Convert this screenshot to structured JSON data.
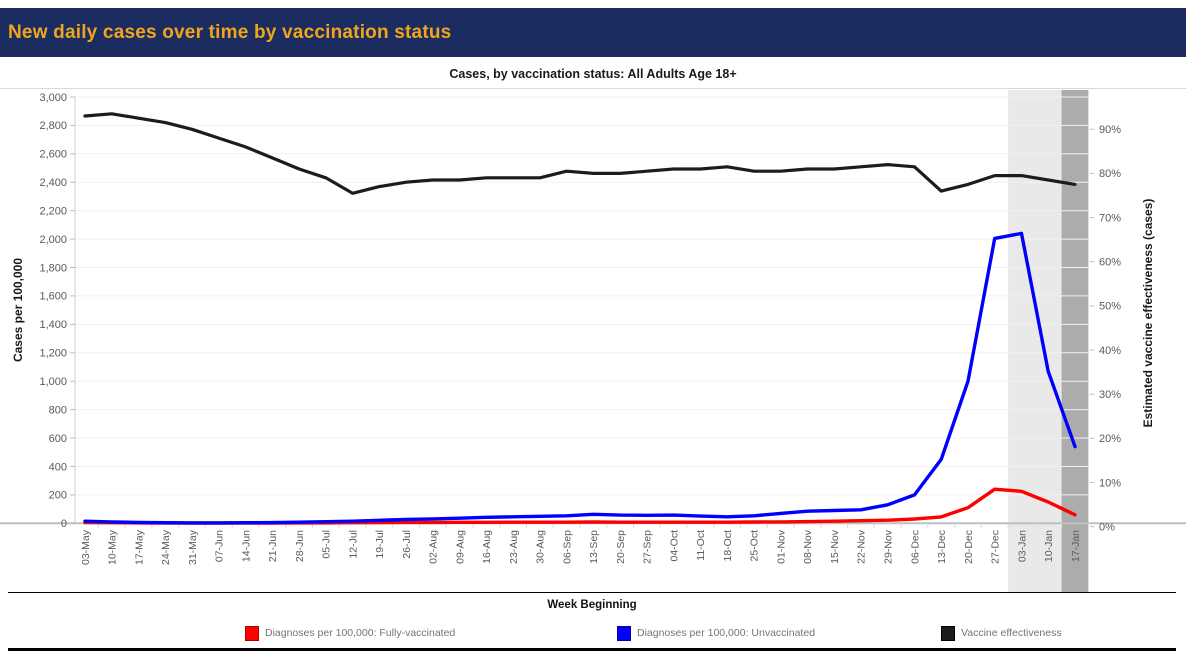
{
  "header": {
    "title": "New daily cases over time by vaccination status"
  },
  "chart": {
    "title": "Cases, by vaccination status: All Adults Age 18+",
    "x_axis_title": "Week Beginning",
    "y_left_title": "Cases per 100,000",
    "y_right_title": "Estimated vaccine effectiveness (cases)"
  },
  "legend": {
    "items": [
      {
        "id": "fully-vaccinated",
        "label": "Diagnoses per 100,000: Fully-vaccinated",
        "color": "#FE0000"
      },
      {
        "id": "unvaccinated",
        "label": "Diagnoses per 100,000: Unvaccinated",
        "color": "#0100FE"
      },
      {
        "id": "vaccine-effectiveness",
        "label": "Vaccine effectiveness",
        "color": "#1C1C1C"
      }
    ]
  },
  "colors": {
    "header_background": "#1A2C60",
    "header_text": "#F2A51B",
    "band_light": "#E9E9E9",
    "band_dark": "#ACACAC",
    "axis_line": "#BFBFBF",
    "tick_text": "#5A5A5A"
  },
  "chart_data": {
    "type": "line",
    "title": "Cases, by vaccination status: All Adults Age 18+",
    "categories": [
      "03-May",
      "10-May",
      "17-May",
      "24-May",
      "31-May",
      "07-Jun",
      "14-Jun",
      "21-Jun",
      "28-Jun",
      "05-Jul",
      "12-Jul",
      "19-Jul",
      "26-Jul",
      "02-Aug",
      "09-Aug",
      "16-Aug",
      "23-Aug",
      "30-Aug",
      "06-Sep",
      "13-Sep",
      "20-Sep",
      "27-Sep",
      "04-Oct",
      "11-Oct",
      "18-Oct",
      "25-Oct",
      "01-Nov",
      "08-Nov",
      "15-Nov",
      "22-Nov",
      "29-Nov",
      "06-Dec",
      "13-Dec",
      "20-Dec",
      "27-Dec",
      "03-Jan",
      "10-Jan",
      "17-Jan"
    ],
    "xlabel": "Week Beginning",
    "y_left": {
      "label": "Cases per 100,000",
      "min": 0,
      "max": 3000,
      "step": 200
    },
    "y_right": {
      "label": "Estimated vaccine effectiveness (cases)",
      "min": 0,
      "max": 90,
      "step": 10,
      "unit": "%"
    },
    "grid": "faint-horizontal",
    "legend_position": "bottom",
    "series": [
      {
        "id": "fully-vaccinated",
        "name": "Diagnoses per 100,000: Fully-vaccinated",
        "axis": "left",
        "color": "#FE0000",
        "values": [
          5,
          4,
          3,
          2,
          2,
          2,
          2,
          2,
          3,
          3,
          4,
          5,
          6,
          6,
          7,
          7,
          8,
          8,
          8,
          9,
          8,
          8,
          8,
          8,
          8,
          9,
          10,
          12,
          15,
          18,
          22,
          30,
          45,
          110,
          240,
          225,
          150,
          60
        ]
      },
      {
        "id": "unvaccinated",
        "name": "Diagnoses per 100,000: Unvaccinated",
        "axis": "left",
        "color": "#0100FE",
        "values": [
          15,
          10,
          6,
          4,
          3,
          3,
          4,
          5,
          8,
          11,
          15,
          21,
          27,
          31,
          36,
          42,
          46,
          49,
          53,
          63,
          58,
          56,
          58,
          51,
          46,
          53,
          70,
          85,
          90,
          95,
          130,
          200,
          450,
          1000,
          2005,
          2040,
          1070,
          540
        ]
      },
      {
        "id": "vaccine-effectiveness",
        "name": "Vaccine effectiveness",
        "axis": "right",
        "color": "#1C1C1C",
        "values": [
          93,
          93.5,
          92.5,
          91.5,
          90,
          88,
          86,
          83.5,
          81,
          79,
          75.5,
          77,
          78,
          78.5,
          78.5,
          79,
          79,
          79,
          80.5,
          80,
          80,
          80.5,
          81,
          81,
          81.5,
          80.5,
          80.5,
          81,
          81,
          81.5,
          82,
          81.5,
          76,
          77.5,
          79.5,
          79.5,
          78.5,
          77.5
        ]
      }
    ],
    "highlight_bands": [
      {
        "label": "provisional-weeks",
        "start_index": 35,
        "end_index": 36,
        "color": "#E9E9E9"
      },
      {
        "label": "most-recent-week",
        "start_index": 37,
        "end_index": 37,
        "color": "#ACACAC"
      }
    ]
  }
}
